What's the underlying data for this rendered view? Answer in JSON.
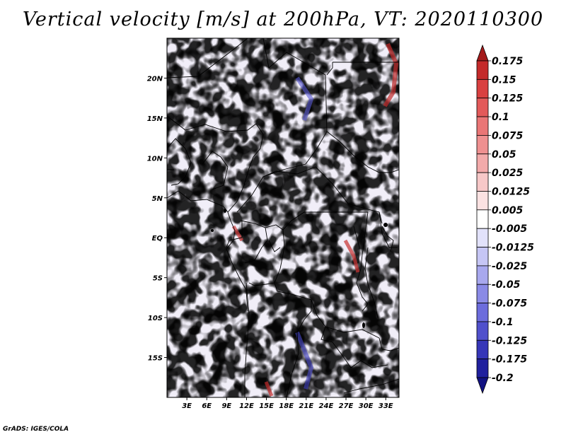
{
  "title": "Vertical velocity [m/s] at 200hPa, VT: 2020110300",
  "credit": "GrADS: IGES/COLA",
  "map": {
    "lon_range": [
      0,
      35
    ],
    "lat_range": [
      -20,
      25
    ],
    "lon_ticks": [
      {
        "lon": 3,
        "label": "3E"
      },
      {
        "lon": 6,
        "label": "6E"
      },
      {
        "lon": 9,
        "label": "9E"
      },
      {
        "lon": 12,
        "label": "12E"
      },
      {
        "lon": 15,
        "label": "15E"
      },
      {
        "lon": 18,
        "label": "18E"
      },
      {
        "lon": 21,
        "label": "21E"
      },
      {
        "lon": 24,
        "label": "24E"
      },
      {
        "lon": 27,
        "label": "27E"
      },
      {
        "lon": 30,
        "label": "30E"
      },
      {
        "lon": 33,
        "label": "33E"
      }
    ],
    "lat_ticks": [
      {
        "lat": 20,
        "label": "20N"
      },
      {
        "lat": 15,
        "label": "15N"
      },
      {
        "lat": 10,
        "label": "10N"
      },
      {
        "lat": 5,
        "label": "5N"
      },
      {
        "lat": 0,
        "label": "EQ"
      },
      {
        "lat": -5,
        "label": "5S"
      },
      {
        "lat": -10,
        "label": "10S"
      },
      {
        "lat": -15,
        "label": "15S"
      }
    ]
  },
  "colorbar": {
    "labels": [
      "0.175",
      "0.15",
      "0.125",
      "0.1",
      "0.075",
      "0.05",
      "0.025",
      "0.0125",
      "0.005",
      "-0.005",
      "-0.0125",
      "-0.025",
      "-0.05",
      "-0.075",
      "-0.1",
      "-0.125",
      "-0.175",
      "-0.2"
    ],
    "colors": [
      "#a31a1a",
      "#c42a2a",
      "#d94040",
      "#e35a5a",
      "#ea7676",
      "#ef9090",
      "#f3aaaa",
      "#f7c8c8",
      "#fbe2e2",
      "#ffffff",
      "#e2e2fb",
      "#c6c6f5",
      "#a8a8ee",
      "#8a8ae6",
      "#6c6cdc",
      "#5050cc",
      "#3636b8",
      "#20209e",
      "#121282"
    ]
  }
}
